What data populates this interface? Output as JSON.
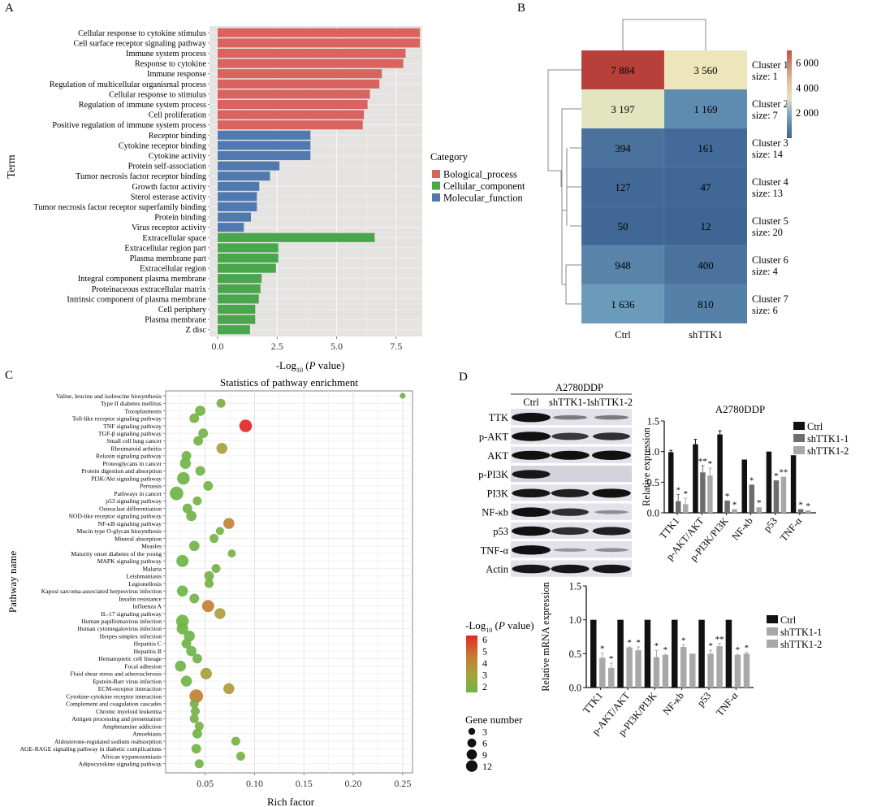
{
  "panel_labels": {
    "a": "A",
    "b": "B",
    "c": "C",
    "d": "D"
  },
  "chart_data": [
    {
      "id": "A",
      "type": "bar",
      "orientation": "horizontal",
      "title": "",
      "xlabel_prefix": "-Log",
      "xlabel_sub": "10",
      "xlabel_suffix_open": " (",
      "xlabel_italic": "P",
      "xlabel_suffix_close": " value)",
      "ylabel": "Term",
      "xlim": [
        0,
        8.6
      ],
      "xticks": [
        0,
        2.5,
        5,
        7.5
      ],
      "xtick_labels": [
        "0.0",
        "2.5",
        "5.0",
        "7.5"
      ],
      "grid": true,
      "legend_title": "Category",
      "legend_position": "right",
      "categories_legend": [
        {
          "name": "Bological_process",
          "color": "#d9635f"
        },
        {
          "name": "Cellular_component",
          "color": "#4aa64d"
        },
        {
          "name": "Molecular_function",
          "color": "#5079b0"
        }
      ],
      "terms": [
        {
          "label": "Cellular response to cytokine stimulus",
          "value": 8.5,
          "category": 0
        },
        {
          "label": "Cell surface receptor signaling pathway",
          "value": 8.5,
          "category": 0
        },
        {
          "label": "Immune system process",
          "value": 7.9,
          "category": 0
        },
        {
          "label": "Response to cytokine",
          "value": 7.8,
          "category": 0
        },
        {
          "label": "Immune response",
          "value": 6.9,
          "category": 0
        },
        {
          "label": "Regulation of multicellular organismal process",
          "value": 6.8,
          "category": 0
        },
        {
          "label": "Cellular response to stimulus",
          "value": 6.4,
          "category": 0
        },
        {
          "label": "Regulation of immune system process",
          "value": 6.3,
          "category": 0
        },
        {
          "label": "Cell proliferation",
          "value": 6.15,
          "category": 0
        },
        {
          "label": "Positive regulation of immune system process",
          "value": 6.1,
          "category": 0
        },
        {
          "label": "Receptor binding",
          "value": 3.9,
          "category": 2
        },
        {
          "label": "Cytokine receptor binding",
          "value": 3.9,
          "category": 2
        },
        {
          "label": "Cytokine activity",
          "value": 3.9,
          "category": 2
        },
        {
          "label": "Protein self-association",
          "value": 2.6,
          "category": 2
        },
        {
          "label": "Tumor necrosis factor receptor binding",
          "value": 2.2,
          "category": 2
        },
        {
          "label": "Growth factor activity",
          "value": 1.75,
          "category": 2
        },
        {
          "label": "Sterol esterase activity",
          "value": 1.65,
          "category": 2
        },
        {
          "label": "Tumor necrosis factor receptor superfamily binding",
          "value": 1.65,
          "category": 2
        },
        {
          "label": "Protein binding",
          "value": 1.4,
          "category": 2
        },
        {
          "label": "Virus receptor activity",
          "value": 1.1,
          "category": 2
        },
        {
          "label": "Extracellular space",
          "value": 6.6,
          "category": 1
        },
        {
          "label": "Extracellular region part",
          "value": 2.55,
          "category": 1
        },
        {
          "label": "Plasma membrane part",
          "value": 2.55,
          "category": 1
        },
        {
          "label": "Extracellular region",
          "value": 2.45,
          "category": 1
        },
        {
          "label": "Integral component plasma membrane",
          "value": 1.85,
          "category": 1
        },
        {
          "label": "Proteinaceous extracellular matrix",
          "value": 1.8,
          "category": 1
        },
        {
          "label": "Intrinsic component of plasma membrane",
          "value": 1.73,
          "category": 1
        },
        {
          "label": "Cell periphery",
          "value": 1.58,
          "category": 1
        },
        {
          "label": "Plasma membrane",
          "value": 1.58,
          "category": 1
        },
        {
          "label": "Z disc",
          "value": 1.36,
          "category": 1
        }
      ]
    },
    {
      "id": "B",
      "type": "heatmap",
      "columns": [
        "Ctrl",
        "shTTK1"
      ],
      "rows": [
        {
          "name": "Cluster 1",
          "size": "size: 1",
          "values": [
            7884,
            3560
          ],
          "labels": [
            "7 884",
            "3 560"
          ]
        },
        {
          "name": "Cluster 2",
          "size": "size: 7",
          "values": [
            3197,
            1169
          ],
          "labels": [
            "3 197",
            "1 169"
          ]
        },
        {
          "name": "Cluster 3",
          "size": "size: 14",
          "values": [
            394,
            161
          ],
          "labels": [
            "394",
            "161"
          ]
        },
        {
          "name": "Cluster 4",
          "size": "size: 13",
          "values": [
            127,
            47
          ],
          "labels": [
            "127",
            "47"
          ]
        },
        {
          "name": "Cluster 5",
          "size": "size: 20",
          "values": [
            50,
            12
          ],
          "labels": [
            "50",
            "12"
          ]
        },
        {
          "name": "Cluster 6",
          "size": "size: 4",
          "values": [
            948,
            400
          ],
          "labels": [
            "948",
            "400"
          ]
        },
        {
          "name": "Cluster 7",
          "size": "size: 6",
          "values": [
            1636,
            810
          ],
          "labels": [
            "1 636",
            "810"
          ]
        }
      ],
      "colorbar_ticks": [
        2000,
        4000,
        6000
      ],
      "colorbar_tick_labels": [
        "2 000",
        "4 000",
        "6 000"
      ],
      "colorbar_range": [
        0,
        7000
      ],
      "colors": {
        "low": "#3f6594",
        "mid": "#f0eec0",
        "high": "#b8403a"
      }
    },
    {
      "id": "C",
      "type": "scatter",
      "title": "Statistics of pathway enrichment",
      "xlabel": "Rich factor",
      "ylabel": "Pathway name",
      "xlim": [
        0.01,
        0.26
      ],
      "xticks": [
        0.05,
        0.1,
        0.15,
        0.2,
        0.25
      ],
      "xtick_labels": [
        "0.05",
        "0.10",
        "0.15",
        "0.20",
        "0.25"
      ],
      "grid": true,
      "color_legend_prefix": "-Log",
      "color_legend_sub": "10",
      "color_legend_open": " (",
      "color_legend_italic": "P",
      "color_legend_close": " value)",
      "color_ticks": [
        "6",
        "5",
        "4",
        "3",
        "2"
      ],
      "color_range": [
        1.5,
        6.5
      ],
      "size_legend_title": "Gene number",
      "size_legend": [
        3,
        6,
        9,
        12
      ],
      "size_legend_labels": [
        "3",
        "6",
        "9",
        "12"
      ],
      "points": [
        {
          "label": "Valine, leucine and isoleucine biosynthesis",
          "x": 0.25,
          "p": 2.0,
          "n": 1
        },
        {
          "label": "Type II diabetes mellitus",
          "x": 0.066,
          "p": 2.4,
          "n": 4
        },
        {
          "label": "Toxoplasmosis",
          "x": 0.045,
          "p": 2.2,
          "n": 6
        },
        {
          "label": "Toll-like receptor signaling pathway",
          "x": 0.039,
          "p": 2.2,
          "n": 5
        },
        {
          "label": "TNF signaling pathway",
          "x": 0.091,
          "p": 6.5,
          "n": 10
        },
        {
          "label": "TGF-β signaling pathway",
          "x": 0.048,
          "p": 2.2,
          "n": 5
        },
        {
          "label": "Small cell lung cancer",
          "x": 0.043,
          "p": 2.2,
          "n": 5
        },
        {
          "label": "Rheumatoid arthritis",
          "x": 0.067,
          "p": 3.5,
          "n": 7
        },
        {
          "label": "Relaxin signaling pathway",
          "x": 0.031,
          "p": 2.1,
          "n": 5
        },
        {
          "label": "Proteoglycans in cancer",
          "x": 0.03,
          "p": 2.0,
          "n": 7
        },
        {
          "label": "Protein digestion and absorption",
          "x": 0.045,
          "p": 2.2,
          "n": 5
        },
        {
          "label": "PI3K/Akt signaling pathway",
          "x": 0.028,
          "p": 2.0,
          "n": 10
        },
        {
          "label": "Pertussis",
          "x": 0.053,
          "p": 2.2,
          "n": 5
        },
        {
          "label": "Pathways in cancer",
          "x": 0.021,
          "p": 2.0,
          "n": 12
        },
        {
          "label": "p53 signaling pathway",
          "x": 0.042,
          "p": 2.2,
          "n": 4
        },
        {
          "label": "Osteoclast differentiation",
          "x": 0.032,
          "p": 2.1,
          "n": 5
        },
        {
          "label": "NOD-like receptor signaling pathway",
          "x": 0.036,
          "p": 2.1,
          "n": 6
        },
        {
          "label": "NF-κB signaling pathway",
          "x": 0.074,
          "p": 4.6,
          "n": 7
        },
        {
          "label": "Mucin type O-glycan biosynthesis",
          "x": 0.065,
          "p": 2.2,
          "n": 3
        },
        {
          "label": "Mineral absorption",
          "x": 0.059,
          "p": 2.1,
          "n": 4
        },
        {
          "label": "Measles",
          "x": 0.039,
          "p": 2.1,
          "n": 6
        },
        {
          "label": "Maturity onset diabetes of the young",
          "x": 0.077,
          "p": 2.3,
          "n": 3
        },
        {
          "label": "MAPK signaling pathway",
          "x": 0.027,
          "p": 2.0,
          "n": 9
        },
        {
          "label": "Malaria",
          "x": 0.061,
          "p": 2.2,
          "n": 4
        },
        {
          "label": "Leishmaniasis",
          "x": 0.054,
          "p": 2.2,
          "n": 5
        },
        {
          "label": "Legionellosis",
          "x": 0.054,
          "p": 2.2,
          "n": 4
        },
        {
          "label": "Kaposi sarcoma-associated herpesvirus infection",
          "x": 0.027,
          "p": 2.0,
          "n": 7
        },
        {
          "label": "Insulin resistance",
          "x": 0.039,
          "p": 2.1,
          "n": 5
        },
        {
          "label": "Influenza A",
          "x": 0.053,
          "p": 4.7,
          "n": 9
        },
        {
          "label": "IL-17 signaling pathway",
          "x": 0.065,
          "p": 3.6,
          "n": 7
        },
        {
          "label": "Human papillomavirus infection",
          "x": 0.027,
          "p": 1.9,
          "n": 10
        },
        {
          "label": "Human cytomegalovirus infection",
          "x": 0.027,
          "p": 2.0,
          "n": 8
        },
        {
          "label": "Herpes simplex infection",
          "x": 0.034,
          "p": 2.0,
          "n": 7
        },
        {
          "label": "Hepatitis C",
          "x": 0.031,
          "p": 2.0,
          "n": 5
        },
        {
          "label": "Hepatitis B",
          "x": 0.036,
          "p": 2.0,
          "n": 6
        },
        {
          "label": "Hematopietic cell lineage",
          "x": 0.042,
          "p": 2.1,
          "n": 5
        },
        {
          "label": "Focal adhesion",
          "x": 0.025,
          "p": 2.0,
          "n": 7
        },
        {
          "label": "Fluid shear stress and atherosclerosis",
          "x": 0.051,
          "p": 3.4,
          "n": 8
        },
        {
          "label": "Epstein-Barr virus infection",
          "x": 0.031,
          "p": 2.0,
          "n": 7
        },
        {
          "label": "ECM-receptor interaction",
          "x": 0.074,
          "p": 3.8,
          "n": 7
        },
        {
          "label": "Cytokine-cytokine receptor interaction",
          "x": 0.041,
          "p": 4.8,
          "n": 12
        },
        {
          "label": "Complement and coagulation cascades",
          "x": 0.039,
          "p": 2.2,
          "n": 4
        },
        {
          "label": "Chronic myeloid leukemia",
          "x": 0.04,
          "p": 2.2,
          "n": 4
        },
        {
          "label": "Antigen processing and presentation",
          "x": 0.039,
          "p": 2.2,
          "n": 4
        },
        {
          "label": "Amphetamine addiction",
          "x": 0.044,
          "p": 2.3,
          "n": 4
        },
        {
          "label": "Amoebiasis",
          "x": 0.042,
          "p": 2.1,
          "n": 5
        },
        {
          "label": "Aldosterone-regulated sodium reabsorption",
          "x": 0.081,
          "p": 2.3,
          "n": 4
        },
        {
          "label": "AGE-RAGE signaling pathway in diabetic complications",
          "x": 0.041,
          "p": 2.1,
          "n": 5
        },
        {
          "label": "African trypanosomiasis",
          "x": 0.086,
          "p": 2.3,
          "n": 4
        },
        {
          "label": "Adipocytokine signaling pathway",
          "x": 0.044,
          "p": 2.2,
          "n": 4
        }
      ]
    },
    {
      "id": "D-blot",
      "type": "table",
      "cell_line": "A2780DDP",
      "lanes": [
        "Ctrl",
        "shTTK1-1",
        "shTTK1-2"
      ],
      "proteins": [
        {
          "name": "TTK",
          "intensity": [
            1.0,
            0.3,
            0.3
          ]
        },
        {
          "name": "p-AKT",
          "intensity": [
            1.0,
            0.7,
            0.75
          ]
        },
        {
          "name": "AKT",
          "intensity": [
            0.95,
            0.95,
            1.0
          ]
        },
        {
          "name": "p-PI3K",
          "intensity": [
            0.9,
            0.0,
            0.0
          ]
        },
        {
          "name": "PI3K",
          "intensity": [
            0.9,
            0.85,
            0.95
          ]
        },
        {
          "name": "NF-κb",
          "intensity": [
            1.0,
            0.75,
            0.2
          ]
        },
        {
          "name": "p53",
          "intensity": [
            1.0,
            0.75,
            0.85
          ]
        },
        {
          "name": "TNF-α",
          "intensity": [
            1.0,
            0.15,
            0.2
          ]
        },
        {
          "name": "Actin",
          "intensity": [
            0.9,
            0.9,
            0.9
          ]
        }
      ]
    },
    {
      "id": "D-protein",
      "type": "bar",
      "title": "A2780DDP",
      "ylabel": "Relative expression",
      "ylim": [
        0,
        1.5
      ],
      "yticks": [
        "0.0",
        "0.5",
        "1.0",
        "1.5"
      ],
      "categories": [
        "TTK1",
        "p-AKT/AKT",
        "p-PI3K/PI3K",
        "NF-κb",
        "p53",
        "TNF-α"
      ],
      "series": [
        {
          "name": "Ctrl",
          "color": "#111111",
          "values": [
            0.99,
            1.12,
            1.28,
            0.87,
            1.0,
            0.94
          ],
          "errors": [
            0.03,
            0.08,
            0.06,
            0.0,
            0.0,
            0.0
          ],
          "stars": [
            "",
            "",
            "",
            "",
            "",
            ""
          ]
        },
        {
          "name": "shTTK1-1",
          "color": "#6d6d6d",
          "values": [
            0.19,
            0.66,
            0.2,
            0.46,
            0.53,
            0.06
          ],
          "errors": [
            0.11,
            0.11,
            0.0,
            0.0,
            0.0,
            0.0
          ],
          "stars": [
            "*",
            "**",
            "*",
            "*",
            "*",
            "*"
          ]
        },
        {
          "name": "shTTK1-2",
          "color": "#a8a8a8",
          "values": [
            0.14,
            0.61,
            0.06,
            0.09,
            0.59,
            0.04
          ],
          "errors": [
            0.1,
            0.12,
            0.0,
            0.0,
            0.0,
            0.0
          ],
          "stars": [
            "*",
            "*",
            "*",
            "*",
            "**",
            "*"
          ]
        }
      ]
    },
    {
      "id": "D-mrna",
      "type": "bar",
      "title": "",
      "ylabel": "Relative mRNA expression",
      "ylim": [
        0,
        1.5
      ],
      "yticks": [
        "0.0",
        "0.5",
        "1.0",
        "1.5"
      ],
      "categories": [
        "TTK1",
        "p-AKT/AKT",
        "p-PI3K/PI3K",
        "NF-κb",
        "p53",
        "TNF-α"
      ],
      "series": [
        {
          "name": "Ctrl",
          "color": "#111111",
          "values": [
            1.0,
            1.0,
            1.0,
            1.0,
            1.0,
            1.0
          ],
          "errors": [
            0,
            0,
            0,
            0,
            0,
            0
          ],
          "stars": [
            "",
            "",
            "",
            "",
            "",
            ""
          ]
        },
        {
          "name": "shTTK1-1",
          "color": "#a8a8a8",
          "values": [
            0.44,
            0.59,
            0.45,
            0.6,
            0.5,
            0.48
          ],
          "errors": [
            0.07,
            0.01,
            0.1,
            0.03,
            0.05,
            0.01
          ],
          "stars": [
            "*",
            "*",
            "*",
            "*",
            "*",
            "*"
          ]
        },
        {
          "name": "shTTK1-2",
          "color": "#a8a8a8",
          "values": [
            0.29,
            0.55,
            0.48,
            0.5,
            0.61,
            0.5
          ],
          "errors": [
            0.07,
            0.05,
            0.01,
            0.0,
            0.04,
            0.02
          ],
          "stars": [
            "*",
            "*",
            "*",
            "",
            "**",
            "*"
          ]
        }
      ]
    }
  ]
}
